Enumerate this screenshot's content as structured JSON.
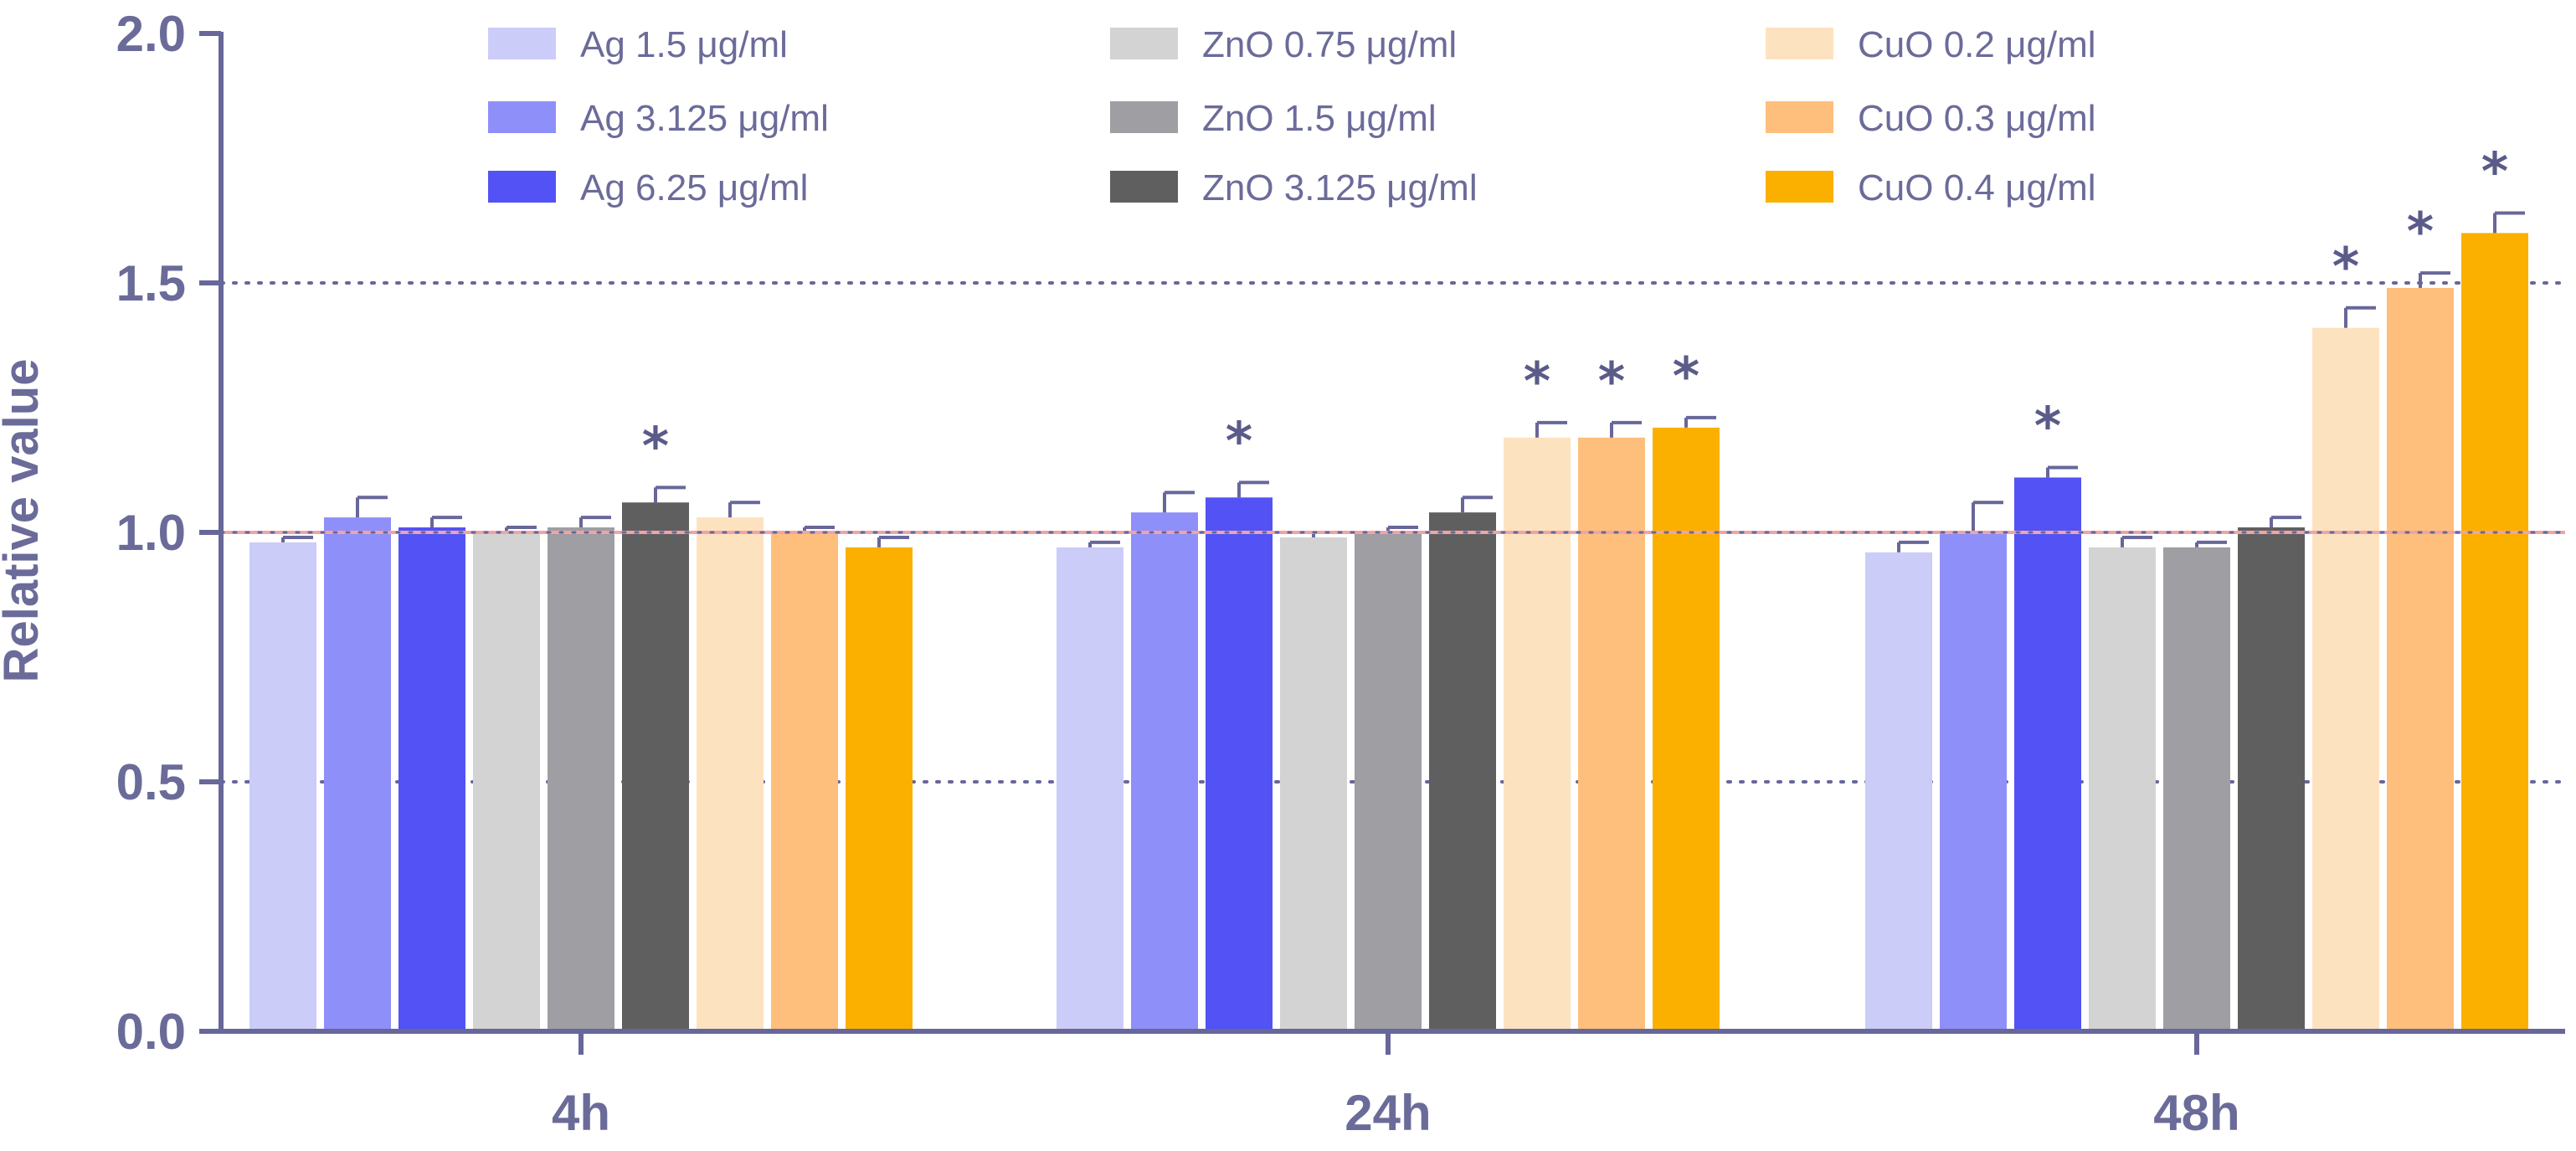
{
  "chart_data": {
    "type": "bar",
    "title": "",
    "xlabel": "",
    "ylabel": "Relative value",
    "ylim": [
      0,
      2.0
    ],
    "yticks": [
      "0.0",
      "0.5",
      "1.0",
      "1.5",
      "2.0"
    ],
    "categories": [
      "4h",
      "24h",
      "48h"
    ],
    "reference_line": 1.0,
    "gridlines": [
      0.5,
      1.5
    ],
    "significance_marker": "*",
    "series": [
      {
        "name": "Ag 1.5 μg/ml",
        "color": "#ccccf9",
        "values": [
          0.98,
          0.97,
          0.96
        ],
        "errors": [
          0.01,
          0.01,
          0.02
        ],
        "significant": [
          false,
          false,
          false
        ]
      },
      {
        "name": "Ag 3.125 μg/ml",
        "color": "#8f8ffa",
        "values": [
          1.03,
          1.04,
          1.0
        ],
        "errors": [
          0.04,
          0.04,
          0.06
        ],
        "significant": [
          false,
          false,
          false
        ]
      },
      {
        "name": "Ag 6.25 μg/ml",
        "color": "#5252f5",
        "values": [
          1.01,
          1.07,
          1.11
        ],
        "errors": [
          0.02,
          0.03,
          0.02
        ],
        "significant": [
          false,
          true,
          true
        ]
      },
      {
        "name": "ZnO 0.75 μg/ml",
        "color": "#d3d3d3",
        "values": [
          1.0,
          0.99,
          0.97
        ],
        "errors": [
          0.01,
          0.01,
          0.02
        ],
        "significant": [
          false,
          false,
          false
        ]
      },
      {
        "name": "ZnO 1.5 μg/ml",
        "color": "#9e9ea3",
        "values": [
          1.01,
          1.0,
          0.97
        ],
        "errors": [
          0.02,
          0.01,
          0.01
        ],
        "significant": [
          false,
          false,
          false
        ]
      },
      {
        "name": "ZnO 3.125 μg/ml",
        "color": "#5f5f5f",
        "values": [
          1.06,
          1.04,
          1.01
        ],
        "errors": [
          0.03,
          0.03,
          0.02
        ],
        "significant": [
          true,
          false,
          false
        ]
      },
      {
        "name": "CuO 0.2 μg/ml",
        "color": "#fde2c0",
        "values": [
          1.03,
          1.19,
          1.41
        ],
        "errors": [
          0.03,
          0.03,
          0.04
        ],
        "significant": [
          false,
          true,
          true
        ]
      },
      {
        "name": "CuO 0.3 μg/ml",
        "color": "#fdbf7b",
        "values": [
          1.0,
          1.19,
          1.49
        ],
        "errors": [
          0.01,
          0.03,
          0.03
        ],
        "significant": [
          false,
          true,
          true
        ]
      },
      {
        "name": "CuO 0.4 μg/ml",
        "color": "#fbb000",
        "values": [
          0.97,
          1.21,
          1.6
        ],
        "errors": [
          0.02,
          0.02,
          0.04
        ],
        "significant": [
          false,
          true,
          true
        ]
      }
    ],
    "legend_position": "top"
  },
  "colors": {
    "axis": "#67679a",
    "reference_line": "#f2a3a3",
    "grid": "#67679a"
  }
}
